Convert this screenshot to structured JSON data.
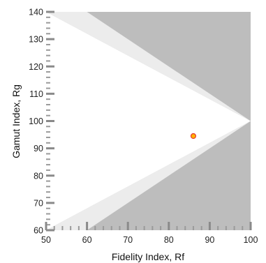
{
  "chart_data": {
    "type": "scatter",
    "title": "",
    "xlabel": "Fidelity Index, Rf",
    "ylabel": "Gamut Index, Rg",
    "xlim": [
      50,
      100
    ],
    "ylim": [
      60,
      140
    ],
    "x_ticks": [
      50,
      60,
      70,
      80,
      90,
      100
    ],
    "y_ticks": [
      60,
      70,
      80,
      90,
      100,
      110,
      120,
      130,
      140
    ],
    "grid": false,
    "background_regions": [
      {
        "name": "out-of-range",
        "color": "#bdbdbd",
        "polygon": [
          [
            50,
            140
          ],
          [
            100,
            140
          ],
          [
            100,
            60
          ],
          [
            50,
            60
          ]
        ]
      },
      {
        "name": "boundary-band",
        "color": "#ececec",
        "polygon": [
          [
            50,
            140
          ],
          [
            60,
            140
          ],
          [
            100,
            100
          ],
          [
            60,
            60
          ],
          [
            50,
            60
          ],
          [
            100,
            100
          ]
        ]
      },
      {
        "name": "valid-area",
        "color": "#ffffff",
        "polygon": [
          [
            50,
            140
          ],
          [
            100,
            100
          ],
          [
            50,
            60
          ]
        ]
      }
    ],
    "points": [
      {
        "x": 86,
        "y": 94.5,
        "fill": "#ffb300",
        "stroke": "#e53935"
      }
    ]
  }
}
